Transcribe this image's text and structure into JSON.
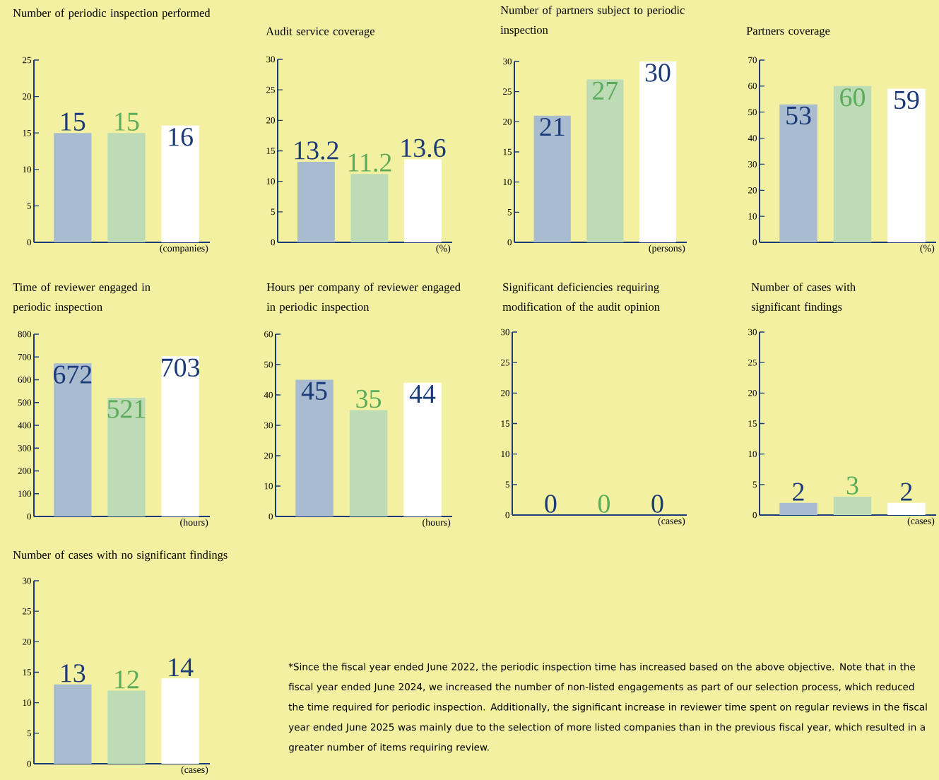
{
  "chart_data": [
    {
      "type": "bar",
      "title": "Number of periodic inspection performed",
      "categories": [
        null,
        null,
        null
      ],
      "values": [
        15,
        15,
        16
      ],
      "colors": [
        "#a9bccf",
        "#bddbb5",
        "#ffffff"
      ],
      "ylim": [
        0,
        25
      ],
      "yticks": [
        0,
        5,
        10,
        15,
        20,
        25
      ],
      "xlabel": "(companies)",
      "data_labels": true
    },
    {
      "type": "bar",
      "title": "Audit service coverage",
      "categories": [
        null,
        null,
        null
      ],
      "values": [
        13.2,
        11.2,
        13.6
      ],
      "colors": [
        "#a9bccf",
        "#bddbb5",
        "#ffffff"
      ],
      "ylim": [
        0,
        30
      ],
      "yticks": [
        0,
        5,
        10,
        15,
        20,
        25,
        30
      ],
      "xlabel": "(%)",
      "data_labels": true
    },
    {
      "type": "bar",
      "title": "Number of partners subject to periodic inspection",
      "categories": [
        null,
        null,
        null
      ],
      "values": [
        21,
        27,
        30
      ],
      "colors": [
        "#a9bccf",
        "#bddbb5",
        "#ffffff"
      ],
      "ylim": [
        0,
        30
      ],
      "yticks": [
        0,
        5,
        10,
        15,
        20,
        25,
        30
      ],
      "xlabel": "(persons)",
      "data_labels": true
    },
    {
      "type": "bar",
      "title": "Partners coverage",
      "categories": [
        null,
        null,
        null
      ],
      "values": [
        53,
        60,
        59
      ],
      "colors": [
        "#a9bccf",
        "#bddbb5",
        "#ffffff"
      ],
      "ylim": [
        0,
        70
      ],
      "yticks": [
        0,
        10,
        20,
        30,
        40,
        50,
        60,
        70
      ],
      "xlabel": "(%)",
      "data_labels": true
    },
    {
      "type": "bar",
      "title": "Time of reviewer engaged in periodic inspection",
      "categories": [
        null,
        null,
        null
      ],
      "values": [
        672,
        521,
        703
      ],
      "colors": [
        "#a9bccf",
        "#bddbb5",
        "#ffffff"
      ],
      "ylim": [
        0,
        800
      ],
      "yticks": [
        0,
        100,
        200,
        300,
        400,
        500,
        600,
        700,
        800
      ],
      "xlabel": "(hours)",
      "data_labels": true
    },
    {
      "type": "bar",
      "title": "Hours per company of reviewer engaged in periodic inspection",
      "categories": [
        null,
        null,
        null
      ],
      "values": [
        45,
        35,
        44
      ],
      "colors": [
        "#a9bccf",
        "#bddbb5",
        "#ffffff"
      ],
      "ylim": [
        0,
        60
      ],
      "yticks": [
        0,
        10,
        20,
        30,
        40,
        50,
        60
      ],
      "xlabel": "(hours)",
      "data_labels": true
    },
    {
      "type": "bar",
      "title": "Significant deficiencies requiring modification of the audit opinion",
      "categories": [
        null,
        null,
        null
      ],
      "values": [
        0,
        0,
        0
      ],
      "colors": [
        "#a9bccf",
        "#bddbb5",
        "#ffffff"
      ],
      "ylim": [
        0,
        30
      ],
      "yticks": [
        0,
        5,
        10,
        15,
        20,
        25,
        30
      ],
      "xlabel": "(cases)",
      "data_labels": true
    },
    {
      "type": "bar",
      "title": "Number of cases with significant findings",
      "categories": [
        null,
        null,
        null
      ],
      "values": [
        2,
        3,
        2
      ],
      "colors": [
        "#a9bccf",
        "#bddbb5",
        "#ffffff"
      ],
      "ylim": [
        0,
        30
      ],
      "yticks": [
        0,
        5,
        10,
        15,
        20,
        25,
        30
      ],
      "xlabel": "(cases)",
      "data_labels": true
    },
    {
      "type": "bar",
      "title": "Number of cases with no significant findings",
      "categories": [
        null,
        null,
        null
      ],
      "values": [
        13,
        12,
        14
      ],
      "colors": [
        "#a9bccf",
        "#bddbb5",
        "#ffffff"
      ],
      "ylim": [
        0,
        30
      ],
      "yticks": [
        0,
        5,
        10,
        15,
        20,
        25,
        30
      ],
      "xlabel": "(cases)",
      "data_labels": true,
      "annotations": [
        "*Since the fiscal year ended June 2022, the periodic inspection time has increased based on the above objective. Note that in the fiscal year ended June 2024, we increased the number of non-listed engagements as part of our selection process, which reduced the time required for periodic inspection. Additionally, the significant increase in reviewer time spent on regular reviews in the fiscal year ended June 2025 was mainly due to the selection of more listed companies than in the previous fiscal year, which resulted in a greater number of items requiring review."
      ]
    }
  ]
}
